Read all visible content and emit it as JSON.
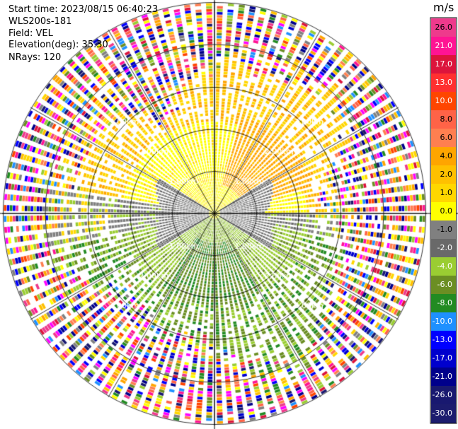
{
  "header": {
    "start_time": "Start time: 2023/08/15 06:40:23",
    "instrument": "WLS200s-181",
    "field": "Field: VEL",
    "elevation": "Elevation(deg): 35.30",
    "nrays": "NRays: 120"
  },
  "colorbar": {
    "unit": "m/s",
    "ticks": [
      "26.0",
      "21.0",
      "17.0",
      "13.0",
      "10.0",
      "8.0",
      "6.0",
      "4.0",
      "2.0",
      "1.0",
      "0.0",
      "-1.0",
      "-2.0",
      "-4.0",
      "-6.0",
      "-8.0",
      "-10.0",
      "-13.0",
      "-17.0",
      "-21.0",
      "-26.0",
      "-30.0"
    ],
    "colors": [
      "#ee3a8c",
      "#ff1493",
      "#dc143c",
      "#ff3030",
      "#ff4500",
      "#ff6347",
      "#ff7f50",
      "#ffa500",
      "#ffc000",
      "#ffd700",
      "#ffff00",
      "#808080",
      "#696969",
      "#9acd32",
      "#6b8e23",
      "#228b22",
      "#1e90ff",
      "#0000ff",
      "#0000cd",
      "#00008b",
      "#191970",
      "#1c1c6e"
    ]
  },
  "chart_data": {
    "type": "radar_ppi",
    "field": "VEL",
    "units": "m/s",
    "nrays": 120,
    "range_rings_km": [
      1.0,
      2.0,
      3.0
    ],
    "range_labels": [
      "1.00km",
      "1.00km",
      "1.00km",
      "1.00km",
      "2.00km",
      "2.00km",
      "2.00km",
      "2.00km",
      "3.00km",
      "3.00km",
      "3.00km",
      "3.00km"
    ],
    "structure": {
      "north_sector": "positive velocities (yellow / orange, 2 to 6 m/s)",
      "center_ring": "near zero (gray, -1 to 1 m/s)",
      "south_sector": "negative velocities (green, -2 to -6 m/s)",
      "outer_ring": "noise, full color range"
    }
  }
}
